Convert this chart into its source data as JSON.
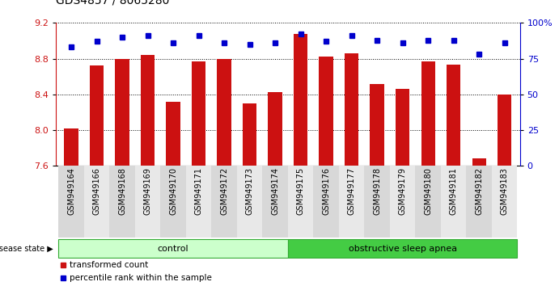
{
  "title": "GDS4857 / 8065280",
  "samples": [
    "GSM949164",
    "GSM949166",
    "GSM949168",
    "GSM949169",
    "GSM949170",
    "GSM949171",
    "GSM949172",
    "GSM949173",
    "GSM949174",
    "GSM949175",
    "GSM949176",
    "GSM949177",
    "GSM949178",
    "GSM949179",
    "GSM949180",
    "GSM949181",
    "GSM949182",
    "GSM949183"
  ],
  "bar_values": [
    8.02,
    8.72,
    8.8,
    8.84,
    8.32,
    8.77,
    8.8,
    8.3,
    8.43,
    9.08,
    8.82,
    8.86,
    8.52,
    8.46,
    8.77,
    8.73,
    7.68,
    8.4
  ],
  "dot_values": [
    83,
    87,
    90,
    91,
    86,
    91,
    86,
    85,
    86,
    92,
    87,
    91,
    88,
    86,
    88,
    88,
    78,
    86
  ],
  "ylim_left": [
    7.6,
    9.2
  ],
  "ylim_right": [
    0,
    100
  ],
  "yticks_left": [
    7.6,
    8.0,
    8.4,
    8.8,
    9.2
  ],
  "yticks_right": [
    0,
    25,
    50,
    75,
    100
  ],
  "ytick_labels_right": [
    "0",
    "25",
    "50",
    "75",
    "100%"
  ],
  "bar_color": "#cc1111",
  "dot_color": "#0000cc",
  "control_color": "#ccffcc",
  "apnea_color": "#44cc44",
  "n_control": 9,
  "n_apnea": 9,
  "control_label": "control",
  "apnea_label": "obstructive sleep apnea",
  "disease_state_label": "disease state",
  "legend_bar_label": "transformed count",
  "legend_dot_label": "percentile rank within the sample",
  "grid_color": "#888888",
  "title_fontsize": 10,
  "tick_fontsize": 7,
  "label_fontsize": 8
}
